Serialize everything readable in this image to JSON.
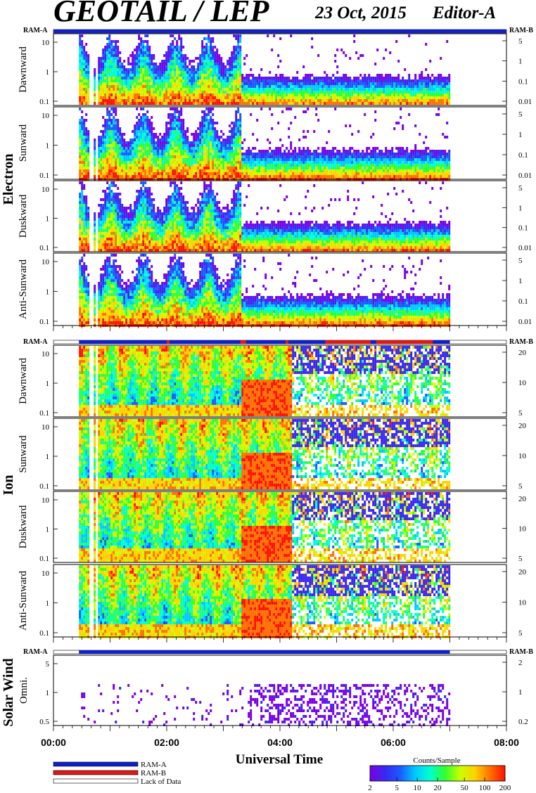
{
  "header": {
    "title": "GEOTAIL / LEP",
    "date": "23 Oct, 2015",
    "editor": "Editor-A"
  },
  "ram_labels": {
    "left": "RAM-A",
    "right": "RAM-B"
  },
  "colors": {
    "ram_a": "#1020c8",
    "ram_b": "#e01818",
    "spectrum": [
      "#7a00e6",
      "#3a28f0",
      "#1a5aff",
      "#00c8ff",
      "#00ffd0",
      "#30ff30",
      "#c8ff00",
      "#ffd200",
      "#ff7000",
      "#ff1000"
    ]
  },
  "chart_data": {
    "type": "heatmap",
    "xlabel": "Universal Time",
    "x_ticks": [
      "00:00",
      "02:00",
      "04:00",
      "06:00",
      "08:00"
    ],
    "x_range_hours": [
      0,
      8
    ],
    "data_span_hours": [
      0.45,
      7.0
    ],
    "groups": [
      {
        "name": "Electron",
        "panels": [
          {
            "label": "Dawnward",
            "left_ticks": [
              "10",
              "1",
              "0.1"
            ],
            "right_ticks": [
              "5",
              "1",
              "0.1",
              "0.01"
            ]
          },
          {
            "label": "Sunward",
            "left_ticks": [
              "10",
              "1",
              "0.1"
            ],
            "right_ticks": [
              "5",
              "1",
              "0.1",
              "0.01"
            ]
          },
          {
            "label": "Duskward",
            "left_ticks": [
              "10",
              "1",
              "0.1"
            ],
            "right_ticks": [
              "5",
              "1",
              "0.1",
              "0.01"
            ]
          },
          {
            "label": "Anti-Sunward",
            "left_ticks": [
              "10",
              "1",
              "0.1"
            ],
            "right_ticks": [
              "5",
              "1",
              "0.1",
              "0.01"
            ]
          }
        ]
      },
      {
        "name": "Ion",
        "panels": [
          {
            "label": "Dawnward",
            "left_ticks": [
              "10",
              "1",
              "0.1"
            ],
            "right_ticks": [
              "20",
              "10",
              "5"
            ]
          },
          {
            "label": "Sunward",
            "left_ticks": [
              "10",
              "1",
              "0.1"
            ],
            "right_ticks": [
              "20",
              "10",
              "5"
            ]
          },
          {
            "label": "Duskward",
            "left_ticks": [
              "10",
              "1",
              "0.1"
            ],
            "right_ticks": [
              "20",
              "10",
              "5"
            ]
          },
          {
            "label": "Anti-Sunward",
            "left_ticks": [
              "10",
              "1",
              "0.1"
            ],
            "right_ticks": [
              "20",
              "10",
              "5"
            ]
          }
        ]
      },
      {
        "name": "Solar Wind",
        "panels": [
          {
            "label": "Omni.",
            "left_ticks": [
              "5",
              "1",
              "0.5"
            ],
            "right_ticks": [
              "2",
              "1",
              "0.2"
            ]
          }
        ]
      }
    ],
    "legend": {
      "items": [
        "RAM-A",
        "RAM-B",
        "Lack of Data"
      ]
    },
    "colorbar": {
      "title": "Counts/Sample",
      "ticks": [
        "2",
        "5",
        "10",
        "20",
        "50",
        "100",
        "200"
      ],
      "range": [
        2,
        200
      ],
      "scale": "log"
    }
  }
}
